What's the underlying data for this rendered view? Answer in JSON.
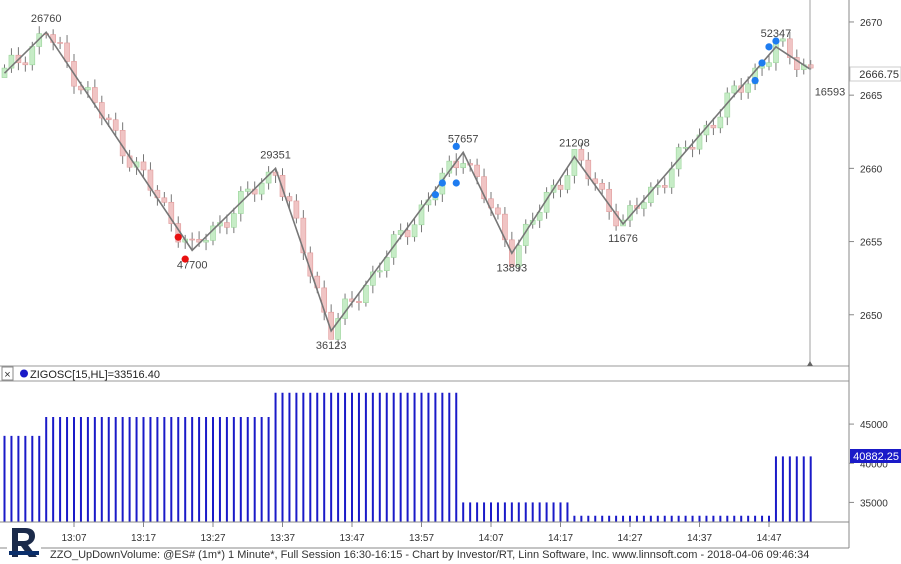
{
  "window": {
    "indicator_title": "ZIGOSC[15,HL]=33516.40",
    "footer": "ZZO_UpDownVolume: @ES# (1m*) 1 Minute*, Full Session 16:30-16:15 - Chart by Investor/RT, Linn Software, Inc. www.linnsoft.com - 2018-04-06 09:46:34",
    "close_label": "2666.75",
    "osc_label": "40882.25"
  },
  "colors": {
    "up_candle": "#c6ecc6",
    "down_candle": "#f0c4c4",
    "zigzag": "#777777",
    "histogram": "#1a1ac8",
    "marker_blue": "#1e7cf0",
    "marker_red": "#e81010"
  },
  "icons": {
    "close_box": "close-icon",
    "indicator_dot": "dot-icon",
    "logo": "investor-rt-logo"
  },
  "chart_data": [
    {
      "type": "candlestick",
      "title": "",
      "x_ticks": [
        "13:07",
        "13:17",
        "13:27",
        "13:37",
        "13:47",
        "13:57",
        "14:07",
        "14:17",
        "14:27",
        "14:37",
        "14:47"
      ],
      "y_ticks": [
        2650,
        2655,
        2660,
        2665,
        2670
      ],
      "ylim": [
        2646.5,
        2671.5
      ],
      "bar_index_range": [
        0,
        116
      ],
      "zigzag": [
        {
          "bar": 0,
          "price": 2666.5
        },
        {
          "bar": 6,
          "price": 2669.3,
          "label": "26760"
        },
        {
          "bar": 27,
          "price": 2654.4,
          "label": "47700"
        },
        {
          "bar": 39,
          "price": 2660.0,
          "label": "29351"
        },
        {
          "bar": 47,
          "price": 2648.9,
          "label": "36123"
        },
        {
          "bar": 66,
          "price": 2661.1,
          "label": "57657"
        },
        {
          "bar": 73,
          "price": 2654.2,
          "label": "13893"
        },
        {
          "bar": 82,
          "price": 2660.8,
          "label": "21208"
        },
        {
          "bar": 89,
          "price": 2656.2,
          "label": "11676"
        },
        {
          "bar": 111,
          "price": 2668.3,
          "label": "52347"
        },
        {
          "bar": 116,
          "price": 2666.75,
          "label": "16593"
        }
      ],
      "markers": [
        {
          "bar": 25,
          "price": 2655.3,
          "color": "red"
        },
        {
          "bar": 26,
          "price": 2653.8,
          "color": "red"
        },
        {
          "bar": 62,
          "price": 2658.2,
          "color": "blue"
        },
        {
          "bar": 63,
          "price": 2659.0,
          "color": "blue"
        },
        {
          "bar": 65,
          "price": 2659.0,
          "color": "blue"
        },
        {
          "bar": 65,
          "price": 2661.5,
          "color": "blue"
        },
        {
          "bar": 108,
          "price": 2666.0,
          "color": "blue"
        },
        {
          "bar": 109,
          "price": 2667.2,
          "color": "blue"
        },
        {
          "bar": 110,
          "price": 2668.3,
          "color": "blue"
        },
        {
          "bar": 111,
          "price": 2668.7,
          "color": "blue"
        }
      ]
    },
    {
      "type": "bar",
      "title": "ZIGOSC[15,HL]=33516.40",
      "y_ticks": [
        35000,
        40000,
        45000
      ],
      "ylim": [
        32500,
        50500
      ],
      "segments": [
        {
          "from_bar": 0,
          "to_bar": 5,
          "value": 43500
        },
        {
          "from_bar": 6,
          "to_bar": 38,
          "value": 45900
        },
        {
          "from_bar": 39,
          "to_bar": 65,
          "value": 49000
        },
        {
          "from_bar": 66,
          "to_bar": 81,
          "value": 35000
        },
        {
          "from_bar": 82,
          "to_bar": 110,
          "value": 33300
        },
        {
          "from_bar": 111,
          "to_bar": 116,
          "value": 40882.25
        }
      ]
    }
  ]
}
